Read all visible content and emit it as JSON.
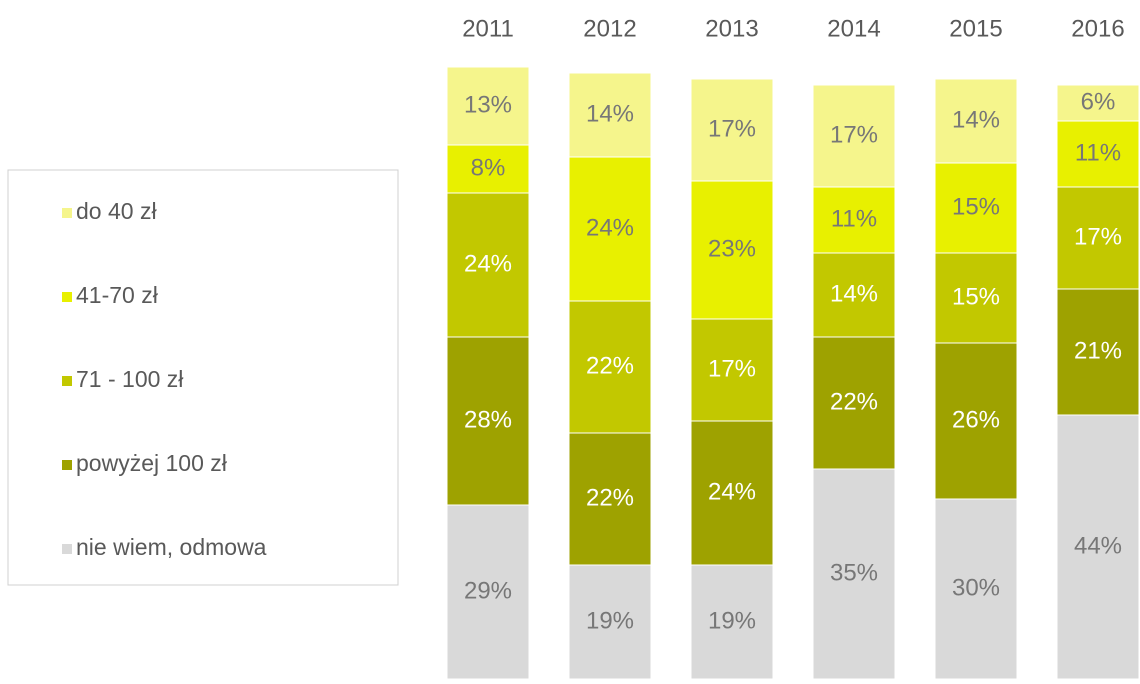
{
  "chart_data": {
    "type": "stacked_bar",
    "categories": [
      "2011",
      "2012",
      "2013",
      "2014",
      "2015",
      "2016"
    ],
    "series": [
      {
        "name": "do 40 zł",
        "color": "#f5f58c",
        "values": [
          13,
          14,
          17,
          17,
          14,
          6
        ],
        "value_labels": [
          "13%",
          "14%",
          "17%",
          "17%",
          "14%",
          "6%"
        ]
      },
      {
        "name": "41-70 zł",
        "color": "#e8f000",
        "values": [
          8,
          24,
          23,
          11,
          15,
          11
        ],
        "value_labels": [
          "8%",
          "24%",
          "23%",
          "11%",
          "15%",
          "11%"
        ]
      },
      {
        "name": "71 - 100 zł",
        "color": "#c2c800",
        "values": [
          24,
          22,
          17,
          14,
          15,
          17
        ],
        "value_labels": [
          "24%",
          "22%",
          "17%",
          "14%",
          "15%",
          "17%"
        ]
      },
      {
        "name": "powyżej 100 zł",
        "color": "#9ea200",
        "values": [
          28,
          22,
          24,
          22,
          26,
          21
        ],
        "value_labels": [
          "28%",
          "22%",
          "24%",
          "22%",
          "26%",
          "21%"
        ]
      },
      {
        "name": "nie wiem, odmowa",
        "color": "#d9d9d9",
        "values": [
          29,
          19,
          19,
          35,
          30,
          44
        ],
        "value_labels": [
          "29%",
          "19%",
          "19%",
          "35%",
          "30%",
          "44%"
        ]
      }
    ]
  }
}
